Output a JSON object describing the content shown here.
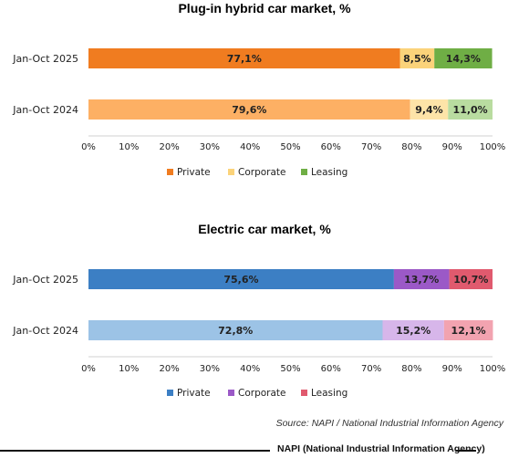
{
  "chart_data": [
    {
      "type": "bar",
      "orientation": "horizontal-stacked-percent",
      "title": "Plug-in hybrid car market, %",
      "categories": [
        "Jan-Oct 2025",
        "Jan-Oct 2024"
      ],
      "xlim": [
        0,
        100
      ],
      "xticks": [
        "0%",
        "10%",
        "20%",
        "30%",
        "40%",
        "50%",
        "60%",
        "70%",
        "80%",
        "90%",
        "100%"
      ],
      "legend_position": "bottom",
      "series": [
        {
          "name": "Private",
          "values": [
            77.1,
            79.6
          ],
          "labels": [
            "77,1%",
            "79,6%"
          ],
          "colors": [
            "#F07C20",
            "#FDB064"
          ]
        },
        {
          "name": "Corporate",
          "values": [
            8.5,
            9.4
          ],
          "labels": [
            "8,5%",
            "9,4%"
          ],
          "colors": [
            "#FBD37A",
            "#FDE4A8"
          ]
        },
        {
          "name": "Leasing",
          "values": [
            14.3,
            11.0
          ],
          "labels": [
            "14,3%",
            "11,0%"
          ],
          "colors": [
            "#6FAE45",
            "#B9DCA0"
          ]
        }
      ]
    },
    {
      "type": "bar",
      "orientation": "horizontal-stacked-percent",
      "title": "Electric car market, %",
      "categories": [
        "Jan-Oct 2025",
        "Jan-Oct 2024"
      ],
      "xlim": [
        0,
        100
      ],
      "xticks": [
        "0%",
        "10%",
        "20%",
        "30%",
        "40%",
        "50%",
        "60%",
        "70%",
        "80%",
        "90%",
        "100%"
      ],
      "legend_position": "bottom",
      "series": [
        {
          "name": "Private",
          "values": [
            75.6,
            72.8
          ],
          "labels": [
            "75,6%",
            "72,8%"
          ],
          "colors": [
            "#3C7FC4",
            "#9CC3E6"
          ]
        },
        {
          "name": "Corporate",
          "values": [
            13.7,
            15.2
          ],
          "labels": [
            "13,7%",
            "15,2%"
          ],
          "colors": [
            "#9B59C7",
            "#D7B6EA"
          ]
        },
        {
          "name": "Leasing",
          "values": [
            10.7,
            12.1
          ],
          "labels": [
            "10,7%",
            "12,1%"
          ],
          "colors": [
            "#E05A6E",
            "#F2A3B0"
          ]
        }
      ]
    }
  ],
  "source": "Source: NAPI / National Industrial Information Agency",
  "footer": "NAPI (National Industrial Information Agency)"
}
